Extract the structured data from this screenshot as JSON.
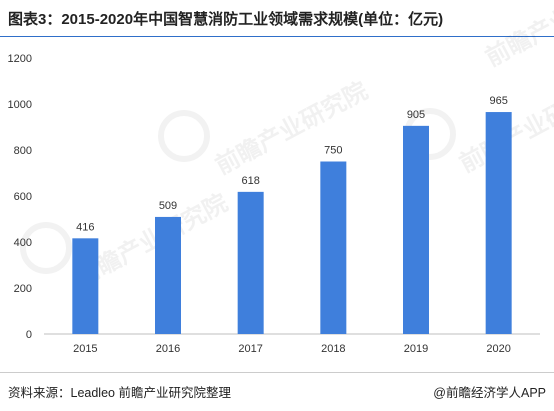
{
  "title": "图表3：2015-2020年中国智慧消防工业领域需求规模(单位：亿元)",
  "source": "资料来源：Leadleo 前瞻产业研究院整理",
  "credit": "@前瞻经济学人APP",
  "watermark": "前瞻产业研究院",
  "colors": {
    "bar": "#3f7fdc",
    "axis": "#bfbfbf",
    "title_rule": "#2f6fc9"
  },
  "chart_data": {
    "type": "bar",
    "categories": [
      "2015",
      "2016",
      "2017",
      "2018",
      "2019",
      "2020"
    ],
    "values": [
      416,
      509,
      618,
      750,
      905,
      965
    ],
    "data_labels": [
      "416",
      "509",
      "618",
      "750",
      "905",
      "965"
    ],
    "yticks": [
      "0",
      "200",
      "400",
      "600",
      "800",
      "1000",
      "1200"
    ],
    "ylim": [
      0,
      1200
    ],
    "grid": false,
    "legend": "none",
    "title": "图表3：2015-2020年中国智慧消防工业领域需求规模(单位：亿元)"
  }
}
